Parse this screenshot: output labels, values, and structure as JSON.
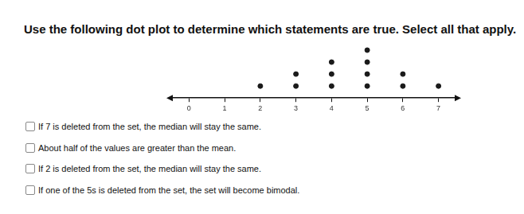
{
  "question": "Use the following dot plot to determine which statements are true. Select all that apply.",
  "options": [
    "If 7 is deleted from the set, the median will stay the same.",
    "About half of the values are greater than the mean.",
    "If 2 is deleted from the set, the median will stay the same.",
    "If one of the 5s is deleted from the set, the set will become bimodal."
  ],
  "chart_data": {
    "type": "dot",
    "x": [
      2,
      3,
      4,
      5,
      6,
      7
    ],
    "values": [
      1,
      2,
      3,
      4,
      2,
      1
    ],
    "color": "#1a1a1a",
    "xlim": [
      -0.5,
      7.5
    ],
    "xticks": [
      0,
      1,
      2,
      3,
      4,
      5,
      6,
      7
    ],
    "tick_labels": "x",
    "grid": false
  }
}
